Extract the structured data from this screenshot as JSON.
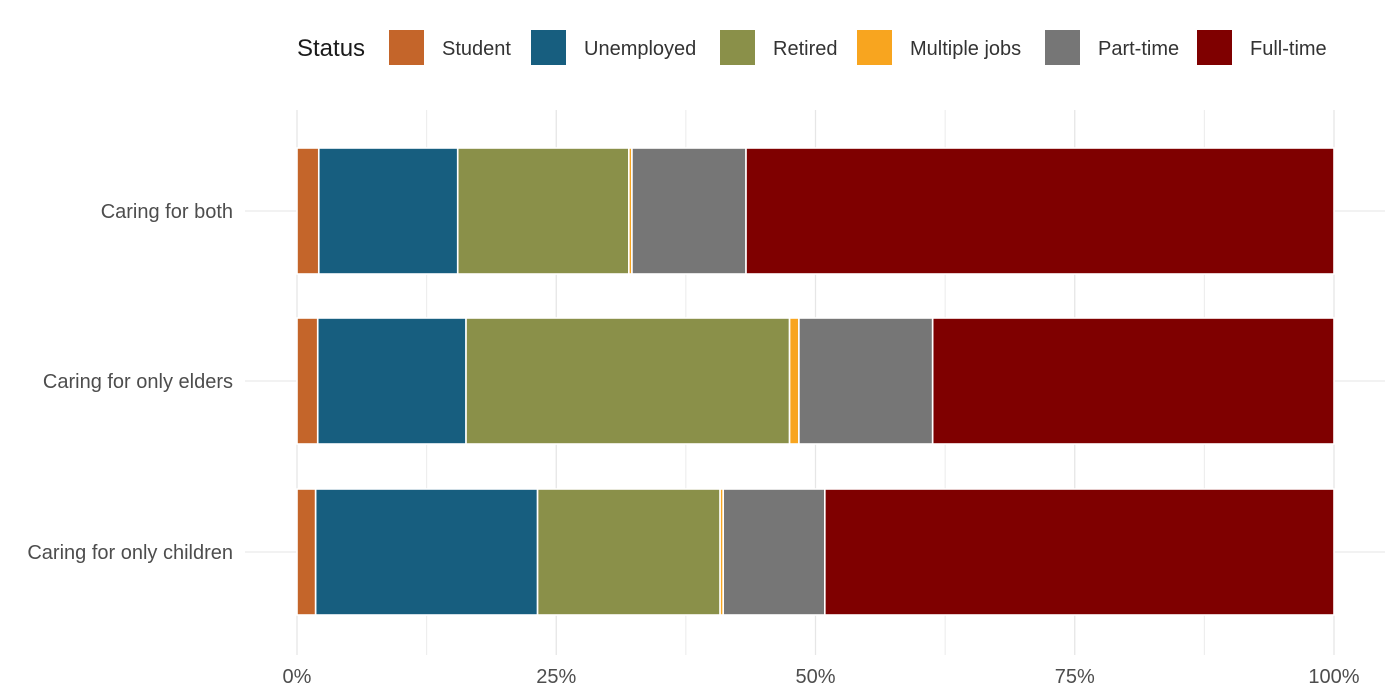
{
  "legend": {
    "title": "Status",
    "position": "top"
  },
  "chart_data": {
    "type": "bar",
    "orientation": "horizontal",
    "stacked": "percent",
    "title": "",
    "xlabel": "",
    "ylabel": "",
    "xlim": [
      0,
      100
    ],
    "x_ticks": [
      "0%",
      "25%",
      "50%",
      "75%",
      "100%"
    ],
    "grid": true,
    "legend_position": "top",
    "legend_title": "Status",
    "categories": [
      "Caring for both",
      "Caring for only elders",
      "Caring for only children"
    ],
    "series": [
      {
        "name": "Student",
        "color": "#C4652A",
        "values": [
          2.1,
          2.0,
          1.8
        ]
      },
      {
        "name": "Unemployed",
        "color": "#175E7F",
        "values": [
          13.4,
          14.3,
          21.4
        ]
      },
      {
        "name": "Retired",
        "color": "#8A9049",
        "values": [
          16.5,
          31.2,
          17.6
        ]
      },
      {
        "name": "Multiple jobs",
        "color": "#F8A51F",
        "values": [
          0.3,
          0.9,
          0.3
        ]
      },
      {
        "name": "Part-time",
        "color": "#767676",
        "values": [
          11.0,
          12.9,
          9.8
        ]
      },
      {
        "name": "Full-time",
        "color": "#7F0000",
        "values": [
          56.7,
          38.7,
          49.1
        ]
      }
    ]
  }
}
